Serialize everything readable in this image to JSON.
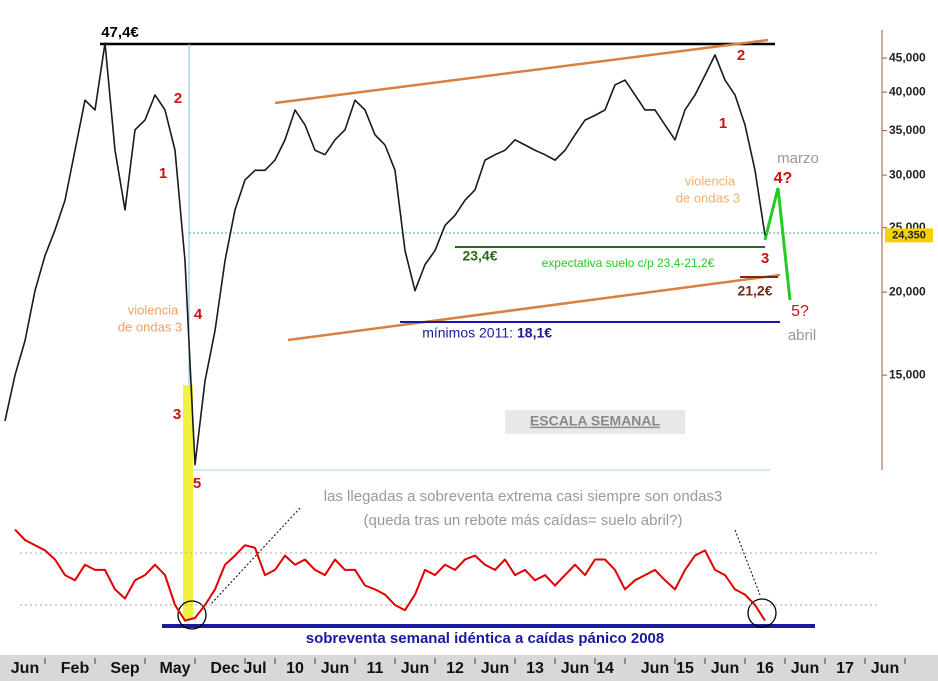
{
  "chart_data": [
    {
      "type": "line",
      "color": "#1a1a1a",
      "log_scale": true,
      "categories": [
        null,
        null,
        "Jun",
        null,
        null,
        null,
        null,
        "Feb",
        null,
        null,
        null,
        null,
        "Sep",
        null,
        null,
        null,
        null,
        "May",
        null,
        null,
        null,
        null,
        "Dec",
        null,
        null,
        "Jul",
        null,
        null,
        null,
        "10",
        null,
        null,
        null,
        "Jun",
        null,
        null,
        null,
        "11",
        null,
        null,
        null,
        "Jun",
        null,
        null,
        null,
        "12",
        null,
        null,
        null,
        "Jun",
        null,
        null,
        null,
        "13",
        null,
        null,
        null,
        "Jun",
        null,
        null,
        "14",
        null,
        null,
        null,
        null,
        "Jun",
        null,
        null,
        "15",
        null,
        null,
        null,
        "Jun",
        null,
        null,
        null,
        "16",
        null,
        null,
        null,
        "Jun",
        null,
        null,
        null,
        "17",
        null,
        null,
        null,
        "Jun"
      ],
      "values": [
        12800,
        15000,
        16900,
        20100,
        22700,
        24800,
        27500,
        32700,
        38900,
        37600,
        47400,
        32700,
        26600,
        35100,
        36300,
        39600,
        37600,
        32700,
        22300,
        11000,
        14700,
        17500,
        22300,
        26600,
        29500,
        30500,
        30500,
        31600,
        33900,
        37600,
        35700,
        32700,
        32200,
        33900,
        35100,
        38900,
        37600,
        34500,
        33300,
        30500,
        23100,
        20100,
        22000,
        23100,
        25200,
        26100,
        27500,
        28500,
        31600,
        32200,
        32700,
        33900,
        33300,
        32700,
        32200,
        31600,
        32700,
        34500,
        36300,
        36900,
        37600,
        41000,
        41700,
        39600,
        37600,
        37600,
        35700,
        33900,
        37600,
        39600,
        42400,
        45500,
        41700,
        39600,
        35700,
        30500,
        24350,
        null,
        null,
        null,
        null,
        null,
        null,
        null,
        null,
        null,
        null,
        null,
        null
      ],
      "ylim": [
        10800,
        49600
      ],
      "yticks": [
        {
          "value": 15000,
          "label": "15,000"
        },
        {
          "value": 20000,
          "label": "20,000"
        },
        {
          "value": 25000,
          "label": "25,000"
        },
        {
          "value": 30000,
          "label": "30,000"
        },
        {
          "value": 35000,
          "label": "35,000"
        },
        {
          "value": 40000,
          "label": "40,000"
        },
        {
          "value": 45000,
          "label": "45,000"
        }
      ],
      "last_price": {
        "value": 24350,
        "label": "24,350"
      },
      "annotations": [
        {
          "text": "47,4€",
          "color": "#000000"
        },
        {
          "text": "2",
          "color": "#d01010"
        },
        {
          "text": "1",
          "color": "#d01010"
        },
        {
          "text": "4",
          "color": "#d01010"
        },
        {
          "text": "3",
          "color": "#d01010"
        },
        {
          "text": "5",
          "color": "#d01010"
        },
        {
          "text": "violencia",
          "color": "#f0a060"
        },
        {
          "text": "de ondas 3",
          "color": "#f0a060"
        },
        {
          "text": "2",
          "color": "#d01010"
        },
        {
          "text": "1",
          "color": "#d01010"
        },
        {
          "text": "3",
          "color": "#d01010"
        },
        {
          "text": "violencia",
          "color": "#f0b070"
        },
        {
          "text": "de ondas 3",
          "color": "#f0b070"
        },
        {
          "text": "marzo",
          "color": "#999999"
        },
        {
          "text": "4?",
          "color": "#d01010"
        },
        {
          "text": "5?",
          "color": "#d01010"
        },
        {
          "text": "abril",
          "color": "#999999"
        },
        {
          "text": "23,4€",
          "color": "#2a6a1a"
        },
        {
          "text": "expectativa suelo c/p 23,4-21,2€",
          "color": "#22cc22"
        },
        {
          "text": "21,2€",
          "color": "#7a2a10"
        },
        {
          "text": "mínimos 2011:",
          "color": "#1a1a9a"
        },
        {
          "text": "18,1€",
          "color": "#1a1a9a"
        },
        {
          "text": "ESCALA SEMANAL",
          "color": "#888888"
        },
        {
          "text": "las llegadas a sobreventa extrema casi siempre son ondas3",
          "color": "#999999"
        },
        {
          "text": "(queda tras un rebote más caídas= suelo abril?)",
          "color": "#999999"
        },
        {
          "text": "sobreventa semanal idéntica a caídas pánico 2008",
          "color": "#1a1aa0"
        }
      ]
    },
    {
      "type": "line",
      "color": "#e00000",
      "values": [
        null,
        88,
        80,
        76,
        72,
        65,
        53,
        49,
        61,
        57,
        57,
        42,
        35,
        49,
        53,
        61,
        53,
        30,
        18,
        20,
        30,
        42,
        61,
        68,
        76,
        74,
        53,
        57,
        68,
        61,
        65,
        57,
        53,
        65,
        57,
        57,
        45,
        42,
        38,
        30,
        26,
        38,
        57,
        53,
        61,
        57,
        65,
        68,
        61,
        57,
        65,
        53,
        57,
        49,
        53,
        45,
        53,
        61,
        53,
        65,
        65,
        57,
        42,
        49,
        53,
        57,
        49,
        42,
        57,
        68,
        72,
        57,
        53,
        42,
        38,
        30,
        18,
        null,
        null,
        null,
        null,
        null,
        null,
        null,
        null,
        null,
        null,
        null,
        null
      ],
      "ylim": [
        0,
        100
      ],
      "levels": [
        30,
        70
      ]
    }
  ]
}
